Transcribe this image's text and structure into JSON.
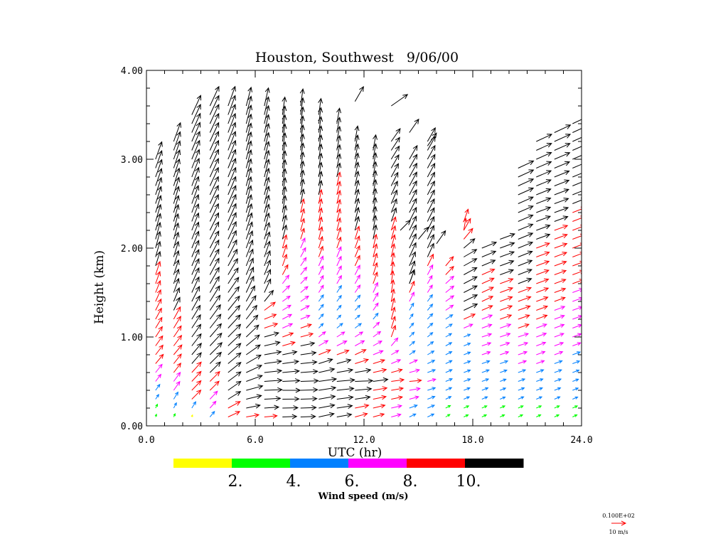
{
  "chart_data": {
    "type": "vector_field",
    "title": "Houston, Southwest   9/06/00",
    "xlabel": "UTC (hr)",
    "ylabel": "Height (km)",
    "xlim": [
      0,
      24
    ],
    "ylim": [
      0,
      4
    ],
    "x_ticks": [
      "0.0",
      "6.0",
      "12.0",
      "18.0",
      "24.0"
    ],
    "y_ticks": [
      "0.00",
      "1.00",
      "2.00",
      "3.00",
      "4.00"
    ],
    "colorbar": {
      "label": "Wind speed (m/s)",
      "bins": [
        {
          "min": 0,
          "max": 2,
          "color": "#ffff00"
        },
        {
          "min": 2,
          "max": 4,
          "color": "#00ff00"
        },
        {
          "min": 4,
          "max": 6,
          "color": "#0080ff"
        },
        {
          "min": 6,
          "max": 8,
          "color": "#ff00ff"
        },
        {
          "min": 8,
          "max": 10,
          "color": "#ff0000"
        },
        {
          "min": 10,
          "max": 99,
          "color": "#000000"
        }
      ],
      "tick_labels": [
        "2.",
        "4.",
        "6.",
        "8.",
        "10."
      ]
    },
    "reference_vector": {
      "value_label": "0.100E+02",
      "unit_label": "10 m/s",
      "speed": 10,
      "color": "#ff0000"
    },
    "profiles": [
      {
        "t": 0.5,
        "top": 3.0,
        "layers": [
          [
            0.1,
            2.0,
            200
          ],
          [
            0.3,
            4.0,
            215
          ],
          [
            0.7,
            8.5,
            220
          ],
          [
            1.6,
            9.0,
            200
          ],
          [
            2.0,
            12.0,
            195
          ],
          [
            2.8,
            13.0,
            200
          ]
        ]
      },
      {
        "t": 1.5,
        "top": 3.2,
        "layers": [
          [
            0.1,
            2.5,
            205
          ],
          [
            0.4,
            7.5,
            215
          ],
          [
            0.8,
            9.0,
            220
          ],
          [
            1.5,
            10.5,
            200
          ],
          [
            2.2,
            12.0,
            195
          ],
          [
            3.2,
            14.0,
            200
          ]
        ]
      },
      {
        "t": 2.5,
        "top": 3.5,
        "layers": [
          [
            0.1,
            1.5,
            200
          ],
          [
            0.3,
            9.0,
            225
          ],
          [
            0.8,
            10.5,
            220
          ],
          [
            1.5,
            12.0,
            205
          ],
          [
            2.5,
            13.5,
            200
          ],
          [
            3.5,
            15.0,
            205
          ]
        ]
      },
      {
        "t": 3.5,
        "top": 3.6,
        "layers": [
          [
            0.1,
            5.0,
            220
          ],
          [
            0.4,
            9.0,
            225
          ],
          [
            0.8,
            12.0,
            225
          ],
          [
            1.5,
            13.0,
            210
          ],
          [
            2.5,
            14.0,
            205
          ],
          [
            3.6,
            15.0,
            205
          ]
        ]
      },
      {
        "t": 4.5,
        "top": 3.6,
        "layers": [
          [
            0.1,
            9.0,
            245
          ],
          [
            0.4,
            11.0,
            235
          ],
          [
            1.0,
            12.5,
            225
          ],
          [
            2.0,
            13.5,
            205
          ],
          [
            3.6,
            14.5,
            200
          ]
        ]
      },
      {
        "t": 5.5,
        "top": 3.6,
        "layers": [
          [
            0.1,
            9.0,
            260
          ],
          [
            0.4,
            12.0,
            255
          ],
          [
            0.8,
            12.0,
            235
          ],
          [
            1.5,
            12.5,
            205
          ],
          [
            2.5,
            13.0,
            195
          ],
          [
            3.6,
            13.5,
            195
          ]
        ]
      },
      {
        "t": 6.5,
        "top": 3.6,
        "layers": [
          [
            0.1,
            9.0,
            265
          ],
          [
            0.4,
            12.5,
            268
          ],
          [
            0.8,
            12.0,
            260
          ],
          [
            1.2,
            9.0,
            248
          ],
          [
            1.5,
            10.5,
            205
          ],
          [
            2.2,
            12.5,
            195
          ],
          [
            3.6,
            13.0,
            193
          ]
        ]
      },
      {
        "t": 7.5,
        "top": 3.5,
        "layers": [
          [
            0.1,
            10.0,
            268
          ],
          [
            0.4,
            12.5,
            270
          ],
          [
            0.7,
            11.5,
            262
          ],
          [
            1.0,
            8.0,
            250
          ],
          [
            1.4,
            6.5,
            235
          ],
          [
            1.8,
            8.5,
            200
          ],
          [
            2.4,
            12.0,
            190
          ],
          [
            3.5,
            12.5,
            188
          ]
        ]
      },
      {
        "t": 8.5,
        "top": 3.6,
        "layers": [
          [
            0.1,
            10.5,
            268
          ],
          [
            0.5,
            12.5,
            268
          ],
          [
            0.8,
            11.0,
            262
          ],
          [
            1.2,
            7.0,
            248
          ],
          [
            1.6,
            6.5,
            225
          ],
          [
            2.1,
            8.0,
            198
          ],
          [
            2.6,
            11.0,
            190
          ],
          [
            3.6,
            12.0,
            188
          ]
        ]
      },
      {
        "t": 9.5,
        "top": 3.5,
        "layers": [
          [
            0.1,
            11.0,
            258
          ],
          [
            0.5,
            12.5,
            262
          ],
          [
            0.8,
            9.0,
            248
          ],
          [
            1.1,
            4.5,
            225
          ],
          [
            1.6,
            6.5,
            210
          ],
          [
            2.2,
            9.5,
            192
          ],
          [
            3.5,
            11.5,
            188
          ]
        ]
      },
      {
        "t": 10.5,
        "top": 3.4,
        "layers": [
          [
            0.1,
            10.5,
            260
          ],
          [
            0.5,
            12.5,
            265
          ],
          [
            0.8,
            9.0,
            250
          ],
          [
            1.2,
            4.0,
            225
          ],
          [
            1.6,
            6.5,
            210
          ],
          [
            2.2,
            9.0,
            195
          ],
          [
            3.4,
            11.0,
            190
          ]
        ]
      },
      {
        "t": 11.5,
        "top": 3.2,
        "layers": [
          [
            0.1,
            9.0,
            255
          ],
          [
            0.5,
            12.5,
            268
          ],
          [
            0.8,
            8.5,
            245
          ],
          [
            1.2,
            4.5,
            230
          ],
          [
            1.6,
            7.0,
            210
          ],
          [
            2.2,
            10.0,
            195
          ],
          [
            3.2,
            11.0,
            190
          ],
          [
            3.7,
            12.0,
            210
          ]
        ]
      },
      {
        "t": 12.5,
        "top": 3.1,
        "layers": [
          [
            0.1,
            8.0,
            255
          ],
          [
            0.5,
            10.5,
            262
          ],
          [
            0.8,
            7.5,
            248
          ],
          [
            1.2,
            5.5,
            220
          ],
          [
            1.6,
            8.5,
            200
          ],
          [
            2.2,
            10.5,
            190
          ],
          [
            3.1,
            11.0,
            190
          ],
          [
            3.5,
            12.0,
            215
          ]
        ]
      },
      {
        "t": 13.5,
        "top": 3.2,
        "layers": [
          [
            0.1,
            7.0,
            255
          ],
          [
            0.5,
            9.0,
            262
          ],
          [
            0.8,
            6.0,
            240
          ],
          [
            1.0,
            8.5,
            200
          ],
          [
            1.6,
            9.0,
            188
          ],
          [
            2.6,
            10.5,
            205
          ],
          [
            3.2,
            11.0,
            215
          ]
        ]
      },
      {
        "t": 14.5,
        "top": 3.0,
        "layers": [
          [
            0.1,
            5.0,
            245
          ],
          [
            0.5,
            8.5,
            265
          ],
          [
            0.8,
            5.0,
            235
          ],
          [
            1.2,
            4.5,
            215
          ],
          [
            1.6,
            10.0,
            200
          ],
          [
            1.9,
            11.0,
            205
          ],
          [
            3.0,
            11.0,
            210
          ]
        ]
      },
      {
        "t": 15.5,
        "top": 3.2,
        "layers": [
          [
            0.1,
            5.0,
            245
          ],
          [
            0.5,
            6.0,
            255
          ],
          [
            1.0,
            4.8,
            230
          ],
          [
            1.6,
            6.5,
            210
          ],
          [
            1.9,
            10.5,
            205
          ],
          [
            3.2,
            11.0,
            210
          ]
        ]
      },
      {
        "t": 16.5,
        "top": 1.8,
        "layers": [
          [
            0.1,
            3.5,
            240
          ],
          [
            0.5,
            5.0,
            248
          ],
          [
            1.0,
            4.8,
            240
          ],
          [
            1.4,
            7.0,
            235
          ],
          [
            1.8,
            8.5,
            220
          ]
        ]
      },
      {
        "t": 17.5,
        "top": 2.35,
        "layers": [
          [
            0.1,
            3.5,
            245
          ],
          [
            0.5,
            5.0,
            250
          ],
          [
            1.0,
            5.0,
            248
          ],
          [
            1.3,
            10.5,
            245
          ],
          [
            1.9,
            10.5,
            240
          ],
          [
            2.35,
            9.0,
            195
          ]
        ]
      },
      {
        "t": 18.5,
        "top": 2.0,
        "layers": [
          [
            0.1,
            3.5,
            245
          ],
          [
            0.5,
            5.0,
            250
          ],
          [
            1.0,
            7.0,
            252
          ],
          [
            1.4,
            8.5,
            245
          ],
          [
            2.0,
            11.0,
            248
          ]
        ]
      },
      {
        "t": 19.5,
        "top": 2.1,
        "layers": [
          [
            0.1,
            3.5,
            245
          ],
          [
            0.5,
            4.5,
            250
          ],
          [
            0.9,
            7.0,
            252
          ],
          [
            1.3,
            9.0,
            250
          ],
          [
            2.1,
            11.0,
            250
          ]
        ]
      },
      {
        "t": 20.5,
        "top": 2.9,
        "layers": [
          [
            0.1,
            3.5,
            245
          ],
          [
            0.5,
            5.0,
            250
          ],
          [
            0.9,
            7.0,
            252
          ],
          [
            1.4,
            9.5,
            250
          ],
          [
            2.0,
            11.0,
            248
          ],
          [
            2.9,
            12.0,
            245
          ]
        ]
      },
      {
        "t": 21.5,
        "top": 3.2,
        "layers": [
          [
            0.1,
            3.5,
            245
          ],
          [
            0.5,
            5.0,
            250
          ],
          [
            1.0,
            7.5,
            250
          ],
          [
            1.5,
            9.0,
            250
          ],
          [
            2.3,
            10.5,
            250
          ],
          [
            3.2,
            12.0,
            245
          ]
        ]
      },
      {
        "t": 22.5,
        "top": 3.3,
        "layers": [
          [
            0.1,
            3.5,
            245
          ],
          [
            0.5,
            5.0,
            250
          ],
          [
            1.0,
            7.0,
            250
          ],
          [
            1.6,
            8.5,
            250
          ],
          [
            2.5,
            10.5,
            250
          ],
          [
            3.3,
            12.5,
            245
          ]
        ]
      },
      {
        "t": 23.5,
        "top": 3.4,
        "layers": [
          [
            0.1,
            3.5,
            245
          ],
          [
            0.5,
            4.5,
            250
          ],
          [
            1.0,
            6.5,
            250
          ],
          [
            1.7,
            8.5,
            250
          ],
          [
            2.7,
            10.5,
            248
          ],
          [
            3.4,
            12.0,
            245
          ]
        ]
      }
    ],
    "sparse_vectors": [
      {
        "t": 11.5,
        "z": 3.65,
        "speed": 12.0,
        "dir": 210
      },
      {
        "t": 13.5,
        "z": 3.6,
        "speed": 14.0,
        "dir": 235
      },
      {
        "t": 14.5,
        "z": 3.3,
        "speed": 11.5,
        "dir": 215
      },
      {
        "t": 15.5,
        "z": 3.15,
        "speed": 11.0,
        "dir": 215
      },
      {
        "t": 14.0,
        "z": 2.2,
        "speed": 10.0,
        "dir": 225
      },
      {
        "t": 15.0,
        "z": 2.1,
        "speed": 11.0,
        "dir": 220
      },
      {
        "t": 16.0,
        "z": 2.05,
        "speed": 11.0,
        "dir": 215
      },
      {
        "t": 14.5,
        "z": 1.6,
        "speed": 10.5,
        "dir": 200
      },
      {
        "t": 17.5,
        "z": 2.2,
        "speed": 8.5,
        "dir": 190
      }
    ]
  }
}
